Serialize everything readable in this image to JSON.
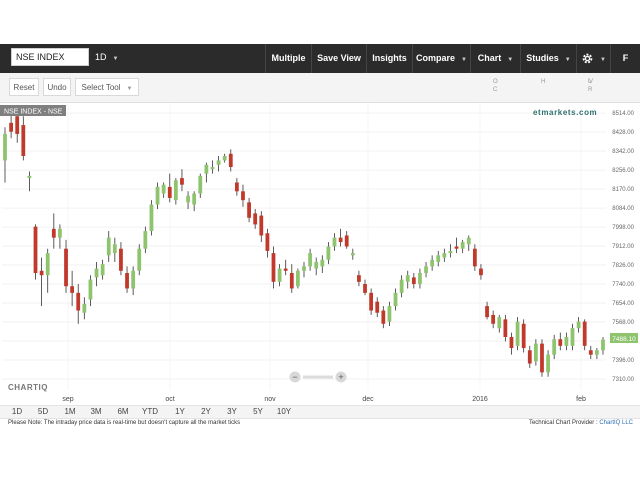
{
  "toolbar": {
    "symbol": "NSE INDEX",
    "period": "1D",
    "buttons": [
      {
        "label": "Multiple",
        "dropdown": false
      },
      {
        "label": "Save View",
        "dropdown": false
      },
      {
        "label": "Insights",
        "dropdown": false
      },
      {
        "label": "Compare",
        "dropdown": true
      },
      {
        "label": "Chart",
        "dropdown": true
      },
      {
        "label": "Studies",
        "dropdown": true
      }
    ],
    "settings_icon": "gear-icon",
    "fullscreen_label": "F"
  },
  "tools": {
    "reset": "Reset",
    "undo": "Undo",
    "select_tool": "Select Tool"
  },
  "ohlc_labels": [
    "O",
    "H",
    "L",
    "V",
    "C",
    "R"
  ],
  "chart_data": {
    "type": "candlestick",
    "series_label": "NSE INDEX - NSE",
    "watermark_text": "etmarkets.com",
    "brand": "CHARTIQ",
    "ylim": [
      7260,
      8560
    ],
    "y_ticks": [
      8514,
      8428,
      8342,
      8256,
      8170,
      8084,
      7998,
      7912,
      7826,
      7740,
      7654,
      7568,
      7482,
      7396,
      7310
    ],
    "x_tick_labels": [
      "sep",
      "oct",
      "nov",
      "dec",
      "2016",
      "feb"
    ],
    "last_price": "7488.10",
    "up_color": "#8fc46f",
    "down_color": "#c0392b",
    "candles": [
      {
        "o": 8300,
        "h": 8450,
        "l": 8200,
        "c": 8420
      },
      {
        "o": 8470,
        "h": 8520,
        "l": 8400,
        "c": 8430
      },
      {
        "o": 8500,
        "h": 8520,
        "l": 8380,
        "c": 8420
      },
      {
        "o": 8460,
        "h": 8500,
        "l": 8300,
        "c": 8320
      },
      {
        "o": 8220,
        "h": 8250,
        "l": 8160,
        "c": 8230
      },
      {
        "o": 8000,
        "h": 8010,
        "l": 7760,
        "c": 7790
      },
      {
        "o": 7800,
        "h": 7860,
        "l": 7640,
        "c": 7780
      },
      {
        "o": 7780,
        "h": 7900,
        "l": 7700,
        "c": 7880
      },
      {
        "o": 7990,
        "h": 8060,
        "l": 7900,
        "c": 7950
      },
      {
        "o": 7950,
        "h": 8010,
        "l": 7900,
        "c": 7990
      },
      {
        "o": 7900,
        "h": 7940,
        "l": 7700,
        "c": 7730
      },
      {
        "o": 7730,
        "h": 7800,
        "l": 7640,
        "c": 7700
      },
      {
        "o": 7700,
        "h": 7740,
        "l": 7560,
        "c": 7620
      },
      {
        "o": 7610,
        "h": 7680,
        "l": 7580,
        "c": 7650
      },
      {
        "o": 7670,
        "h": 7780,
        "l": 7640,
        "c": 7760
      },
      {
        "o": 7770,
        "h": 7840,
        "l": 7730,
        "c": 7810
      },
      {
        "o": 7780,
        "h": 7850,
        "l": 7760,
        "c": 7830
      },
      {
        "o": 7870,
        "h": 7980,
        "l": 7840,
        "c": 7950
      },
      {
        "o": 7880,
        "h": 7950,
        "l": 7840,
        "c": 7920
      },
      {
        "o": 7900,
        "h": 7930,
        "l": 7780,
        "c": 7800
      },
      {
        "o": 7790,
        "h": 7820,
        "l": 7700,
        "c": 7720
      },
      {
        "o": 7720,
        "h": 7820,
        "l": 7690,
        "c": 7800
      },
      {
        "o": 7800,
        "h": 7920,
        "l": 7780,
        "c": 7900
      },
      {
        "o": 7900,
        "h": 8000,
        "l": 7880,
        "c": 7980
      },
      {
        "o": 7980,
        "h": 8120,
        "l": 7960,
        "c": 8100
      },
      {
        "o": 8100,
        "h": 8200,
        "l": 8080,
        "c": 8180
      },
      {
        "o": 8150,
        "h": 8200,
        "l": 8130,
        "c": 8190
      },
      {
        "o": 8180,
        "h": 8240,
        "l": 8110,
        "c": 8130
      },
      {
        "o": 8120,
        "h": 8220,
        "l": 8100,
        "c": 8210
      },
      {
        "o": 8220,
        "h": 8260,
        "l": 8160,
        "c": 8190
      },
      {
        "o": 8110,
        "h": 8160,
        "l": 8080,
        "c": 8140
      },
      {
        "o": 8100,
        "h": 8160,
        "l": 8070,
        "c": 8150
      },
      {
        "o": 8150,
        "h": 8240,
        "l": 8130,
        "c": 8230
      },
      {
        "o": 8240,
        "h": 8290,
        "l": 8200,
        "c": 8280
      },
      {
        "o": 8260,
        "h": 8300,
        "l": 8240,
        "c": 8270
      },
      {
        "o": 8280,
        "h": 8320,
        "l": 8250,
        "c": 8300
      },
      {
        "o": 8300,
        "h": 8330,
        "l": 8290,
        "c": 8320
      },
      {
        "o": 8330,
        "h": 8350,
        "l": 8250,
        "c": 8270
      },
      {
        "o": 8200,
        "h": 8220,
        "l": 8140,
        "c": 8160
      },
      {
        "o": 8160,
        "h": 8190,
        "l": 8090,
        "c": 8120
      },
      {
        "o": 8110,
        "h": 8130,
        "l": 8020,
        "c": 8040
      },
      {
        "o": 8060,
        "h": 8080,
        "l": 7990,
        "c": 8010
      },
      {
        "o": 8050,
        "h": 8070,
        "l": 7930,
        "c": 7960
      },
      {
        "o": 7970,
        "h": 7990,
        "l": 7860,
        "c": 7890
      },
      {
        "o": 7880,
        "h": 7910,
        "l": 7720,
        "c": 7750
      },
      {
        "o": 7750,
        "h": 7830,
        "l": 7730,
        "c": 7810
      },
      {
        "o": 7810,
        "h": 7850,
        "l": 7780,
        "c": 7800
      },
      {
        "o": 7790,
        "h": 7830,
        "l": 7700,
        "c": 7720
      },
      {
        "o": 7730,
        "h": 7810,
        "l": 7720,
        "c": 7800
      },
      {
        "o": 7800,
        "h": 7840,
        "l": 7770,
        "c": 7820
      },
      {
        "o": 7820,
        "h": 7900,
        "l": 7800,
        "c": 7880
      },
      {
        "o": 7810,
        "h": 7860,
        "l": 7780,
        "c": 7840
      },
      {
        "o": 7820,
        "h": 7870,
        "l": 7790,
        "c": 7850
      },
      {
        "o": 7850,
        "h": 7930,
        "l": 7830,
        "c": 7910
      },
      {
        "o": 7910,
        "h": 7970,
        "l": 7890,
        "c": 7950
      },
      {
        "o": 7950,
        "h": 7990,
        "l": 7910,
        "c": 7930
      },
      {
        "o": 7960,
        "h": 7980,
        "l": 7900,
        "c": 7910
      },
      {
        "o": 7870,
        "h": 7900,
        "l": 7850,
        "c": 7880
      },
      {
        "o": 7780,
        "h": 7800,
        "l": 7730,
        "c": 7750
      },
      {
        "o": 7740,
        "h": 7760,
        "l": 7690,
        "c": 7700
      },
      {
        "o": 7700,
        "h": 7720,
        "l": 7600,
        "c": 7620
      },
      {
        "o": 7660,
        "h": 7680,
        "l": 7590,
        "c": 7610
      },
      {
        "o": 7620,
        "h": 7640,
        "l": 7540,
        "c": 7560
      },
      {
        "o": 7570,
        "h": 7660,
        "l": 7550,
        "c": 7640
      },
      {
        "o": 7640,
        "h": 7720,
        "l": 7620,
        "c": 7700
      },
      {
        "o": 7700,
        "h": 7780,
        "l": 7680,
        "c": 7760
      },
      {
        "o": 7750,
        "h": 7800,
        "l": 7720,
        "c": 7780
      },
      {
        "o": 7770,
        "h": 7790,
        "l": 7720,
        "c": 7740
      },
      {
        "o": 7740,
        "h": 7810,
        "l": 7720,
        "c": 7790
      },
      {
        "o": 7790,
        "h": 7840,
        "l": 7770,
        "c": 7820
      },
      {
        "o": 7820,
        "h": 7870,
        "l": 7800,
        "c": 7850
      },
      {
        "o": 7840,
        "h": 7890,
        "l": 7820,
        "c": 7870
      },
      {
        "o": 7860,
        "h": 7900,
        "l": 7840,
        "c": 7880
      },
      {
        "o": 7880,
        "h": 7920,
        "l": 7860,
        "c": 7890
      },
      {
        "o": 7910,
        "h": 7950,
        "l": 7880,
        "c": 7900
      },
      {
        "o": 7900,
        "h": 7940,
        "l": 7880,
        "c": 7930
      },
      {
        "o": 7920,
        "h": 7960,
        "l": 7890,
        "c": 7950
      },
      {
        "o": 7900,
        "h": 7920,
        "l": 7800,
        "c": 7820
      },
      {
        "o": 7810,
        "h": 7830,
        "l": 7760,
        "c": 7780
      },
      {
        "o": 7640,
        "h": 7660,
        "l": 7580,
        "c": 7590
      },
      {
        "o": 7600,
        "h": 7620,
        "l": 7540,
        "c": 7560
      },
      {
        "o": 7540,
        "h": 7600,
        "l": 7520,
        "c": 7590
      },
      {
        "o": 7580,
        "h": 7600,
        "l": 7480,
        "c": 7500
      },
      {
        "o": 7500,
        "h": 7520,
        "l": 7420,
        "c": 7450
      },
      {
        "o": 7460,
        "h": 7590,
        "l": 7440,
        "c": 7570
      },
      {
        "o": 7560,
        "h": 7580,
        "l": 7430,
        "c": 7450
      },
      {
        "o": 7440,
        "h": 7460,
        "l": 7360,
        "c": 7380
      },
      {
        "o": 7390,
        "h": 7490,
        "l": 7370,
        "c": 7470
      },
      {
        "o": 7470,
        "h": 7490,
        "l": 7320,
        "c": 7340
      },
      {
        "o": 7340,
        "h": 7440,
        "l": 7320,
        "c": 7420
      },
      {
        "o": 7420,
        "h": 7510,
        "l": 7400,
        "c": 7490
      },
      {
        "o": 7490,
        "h": 7520,
        "l": 7440,
        "c": 7460
      },
      {
        "o": 7460,
        "h": 7520,
        "l": 7440,
        "c": 7500
      },
      {
        "o": 7460,
        "h": 7560,
        "l": 7440,
        "c": 7540
      },
      {
        "o": 7540,
        "h": 7590,
        "l": 7520,
        "c": 7570
      },
      {
        "o": 7570,
        "h": 7580,
        "l": 7440,
        "c": 7460
      },
      {
        "o": 7440,
        "h": 7460,
        "l": 7400,
        "c": 7420
      },
      {
        "o": 7420,
        "h": 7450,
        "l": 7400,
        "c": 7440
      },
      {
        "o": 7440,
        "h": 7500,
        "l": 7420,
        "c": 7488
      }
    ]
  },
  "range_buttons": [
    "1D",
    "5D",
    "1M",
    "3M",
    "6M",
    "YTD",
    "1Y",
    "2Y",
    "3Y",
    "5Y",
    "10Y"
  ],
  "footer": {
    "note": "Please Note: The intraday price data is real-time but doesn't capture all the market ticks",
    "provider_prefix": "Technical Chart Provider : ",
    "provider_name": "ChartIQ LLC"
  }
}
